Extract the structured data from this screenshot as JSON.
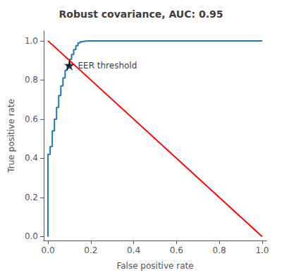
{
  "chart_data": {
    "type": "line",
    "title": "Robust covariance, AUC: 0.95",
    "xlabel": "False positive rate",
    "ylabel": "True positive rate",
    "xlim": [
      -0.02,
      1.02
    ],
    "ylim": [
      -0.02,
      1.05
    ],
    "xticks": [
      {
        "value": 0.0,
        "label": "0.0"
      },
      0.2,
      0.4,
      0.6,
      0.8,
      {
        "value": 1.0,
        "label": "1.0"
      }
    ],
    "yticks": [
      {
        "value": 0.0,
        "label": "0.0"
      },
      0.2,
      0.4,
      0.6,
      0.8,
      {
        "value": 1.0,
        "label": "1.0"
      }
    ],
    "grid": false,
    "series": [
      {
        "type": "line",
        "color": "#1f77b4",
        "x": [
          0.0,
          0.0,
          0.0,
          0.01,
          0.01,
          0.01,
          0.02,
          0.02,
          0.02,
          0.03,
          0.03,
          0.03,
          0.04,
          0.04,
          0.04,
          0.05,
          0.05,
          0.05,
          0.06,
          0.06,
          0.06,
          0.07,
          0.07,
          0.07,
          0.08,
          0.08,
          0.08,
          0.09,
          0.09,
          0.09,
          0.1,
          0.1,
          0.1,
          0.11,
          0.11,
          0.11,
          0.12,
          0.12,
          0.12,
          0.13,
          0.13,
          0.13,
          0.14,
          0.14,
          0.14,
          0.15,
          0.15,
          0.16,
          0.17,
          0.18,
          0.19,
          0.2,
          0.25,
          1.0
        ],
        "values": [
          0.0,
          0.02,
          0.42,
          0.42,
          0.44,
          0.46,
          0.46,
          0.5,
          0.54,
          0.54,
          0.57,
          0.6,
          0.6,
          0.63,
          0.66,
          0.66,
          0.69,
          0.72,
          0.72,
          0.75,
          0.77,
          0.77,
          0.79,
          0.81,
          0.81,
          0.83,
          0.85,
          0.85,
          0.86,
          0.875,
          0.875,
          0.89,
          0.905,
          0.905,
          0.92,
          0.93,
          0.93,
          0.945,
          0.955,
          0.955,
          0.965,
          0.975,
          0.975,
          0.985,
          0.99,
          0.99,
          0.995,
          0.995,
          0.998,
          0.999,
          1.0,
          1.0,
          1.0,
          1.0
        ]
      },
      {
        "type": "line",
        "color": "red",
        "x": [
          0,
          1
        ],
        "values": [
          1,
          0
        ]
      },
      {
        "type": "scatter",
        "color": "black",
        "marker": "star",
        "x": [
          0.1
        ],
        "values": [
          0.875
        ]
      }
    ],
    "annotations": [
      {
        "text": "EER threshold",
        "x": 0.1,
        "y": 0.875
      }
    ]
  }
}
